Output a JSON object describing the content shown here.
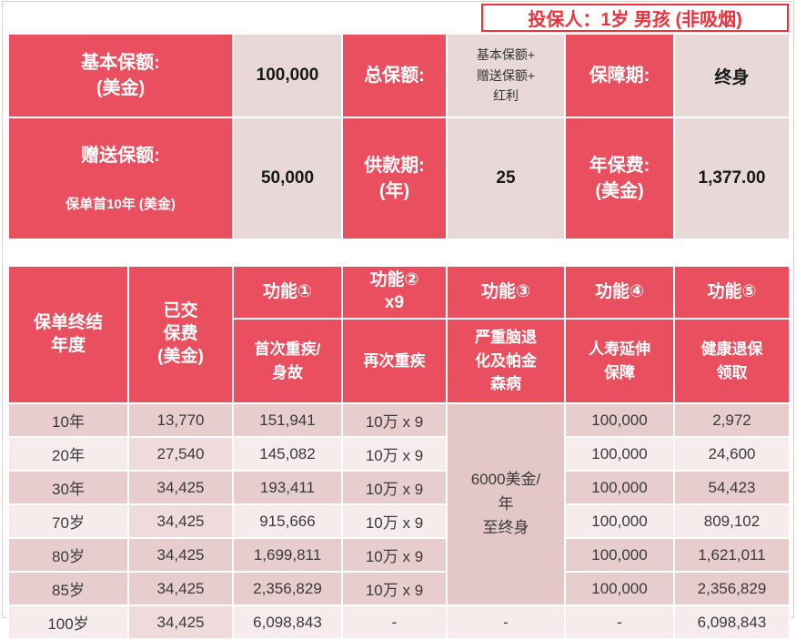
{
  "applicant": {
    "text": "投保人：1岁 男孩 (非吸烟)"
  },
  "colors": {
    "header_red": "#EA4F5F",
    "accent_text_red": "#F0313C",
    "row_dark": "#E7CDCD",
    "row_light": "#F7ECEC",
    "row_light_col2": "#EFDBDB",
    "value_cell": "#E9D8D8",
    "merged_cell": "#E4C8C8"
  },
  "summary": {
    "row1": {
      "basic_amount_label": "基本保额:\n(美金)",
      "basic_amount_value": "100,000",
      "total_amount_label": "总保额:",
      "total_amount_value": "基本保额+\n赠送保额+\n红利",
      "coverage_term_label": "保障期:",
      "coverage_term_value": "终身"
    },
    "row2": {
      "bonus_amount_label": "赠送保额:",
      "bonus_amount_sublabel": "保单首10年  (美金)",
      "bonus_amount_value": "50,000",
      "payment_term_label": "供款期:\n(年)",
      "payment_term_value": "25",
      "annual_premium_label": "年保费:\n(美金)",
      "annual_premium_value": "1,377.00"
    }
  },
  "main": {
    "header": {
      "policy_year": "保单终结\n年度",
      "paid_premium": "已交\n保费\n(美金)",
      "functions": [
        "功能①",
        "功能②\nx9",
        "功能③",
        "功能④",
        "功能⑤"
      ],
      "function_descriptions": [
        "首次重疾/\n身故",
        "再次重疾",
        "严重脑退\n化及帕金\n森病",
        "人寿延伸\n保障",
        "健康退保\n领取"
      ]
    },
    "merged_f3_value": "6000美金/\n年\n至终身",
    "rows": [
      {
        "year": "10年",
        "paid": "13,770",
        "f1": "151,941",
        "f2": "10万 x 9",
        "f4": "100,000",
        "f5": "2,972",
        "band": "dark"
      },
      {
        "year": "20年",
        "paid": "27,540",
        "f1": "145,082",
        "f2": "10万 x 9",
        "f4": "100,000",
        "f5": "24,600",
        "band": "light"
      },
      {
        "year": "30年",
        "paid": "34,425",
        "f1": "193,411",
        "f2": "10万 x 9",
        "f4": "100,000",
        "f5": "54,423",
        "band": "dark"
      },
      {
        "year": "70岁",
        "paid": "34,425",
        "f1": "915,666",
        "f2": "10万 x 9",
        "f4": "100,000",
        "f5": "809,102",
        "band": "light"
      },
      {
        "year": "80岁",
        "paid": "34,425",
        "f1": "1,699,811",
        "f2": "10万 x 9",
        "f4": "100,000",
        "f5": "1,621,011",
        "band": "dark"
      },
      {
        "year": "85岁",
        "paid": "34,425",
        "f1": "2,356,829",
        "f2": "10万 x 9",
        "f4": "100,000",
        "f5": "2,356,829",
        "band": "dark"
      },
      {
        "year": "100岁",
        "paid": "34,425",
        "f1": "6,098,843",
        "f2": "-",
        "f3": "-",
        "f4": "-",
        "f5": "6,098,843",
        "band": "light"
      }
    ]
  }
}
